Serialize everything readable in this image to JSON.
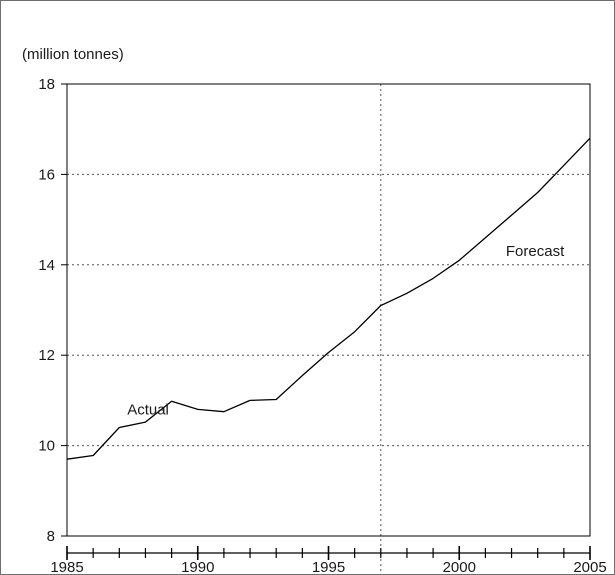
{
  "chart_data": {
    "type": "line",
    "title": "",
    "ylabel": "(million tonnes)",
    "xlabel": "",
    "xlim": [
      1985,
      2005
    ],
    "ylim": [
      8,
      18
    ],
    "x_ticks": [
      1985,
      1990,
      1995,
      2000,
      2005
    ],
    "y_ticks": [
      8,
      10,
      12,
      14,
      16,
      18
    ],
    "grid": "horizontal dotted",
    "divider_x": 1997,
    "series": [
      {
        "x": [
          1985,
          1986,
          1987,
          1988,
          1989,
          1990,
          1991,
          1992,
          1993,
          1994,
          1995,
          1996,
          1997,
          1998,
          1999,
          2000,
          2001,
          2002,
          2003,
          2004,
          2005
        ],
        "values": [
          9.7,
          9.78,
          10.4,
          10.52,
          10.98,
          10.8,
          10.75,
          11.0,
          11.02,
          11.55,
          12.06,
          12.52,
          13.1,
          13.37,
          13.7,
          14.1,
          14.6,
          15.1,
          15.6,
          16.2,
          16.8
        ]
      }
    ],
    "annotations": [
      {
        "text": "Actual",
        "x": 1988.1,
        "y": 10.8
      },
      {
        "text": "Forecast",
        "x": 2002.9,
        "y": 14.3
      }
    ],
    "line_color": "#000000",
    "grid_color": "#555555"
  }
}
